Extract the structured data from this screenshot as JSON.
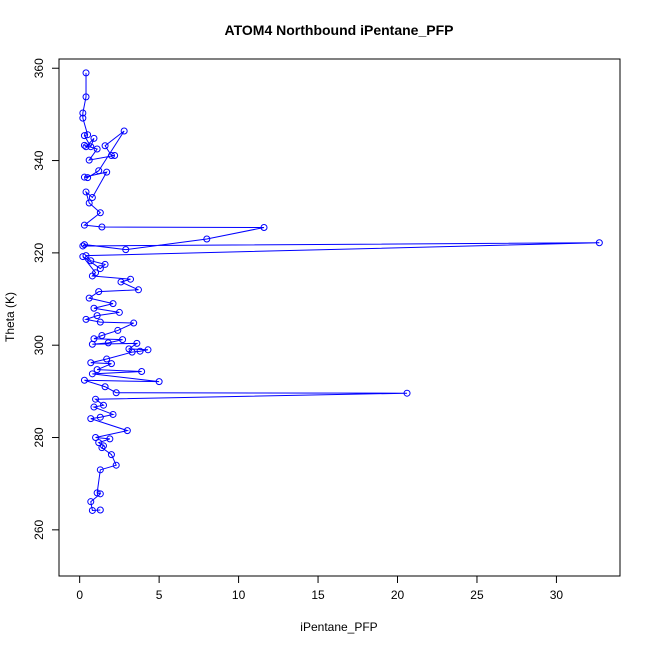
{
  "chart_data": {
    "type": "line",
    "title": "ATOM4 Northbound iPentane_PFP",
    "xlabel": "iPentane_PFP",
    "ylabel": "Theta (K)",
    "xlim": [
      -1.3,
      34.0
    ],
    "ylim": [
      250,
      362
    ],
    "xticks": [
      0,
      5,
      10,
      15,
      20,
      25,
      30
    ],
    "yticks": [
      260,
      280,
      300,
      320,
      340,
      360
    ],
    "grid": false,
    "legend": "none",
    "series_color": "#0000ff",
    "markers": "open-circle",
    "series": [
      {
        "points": [
          [
            0.4,
            359.0
          ],
          [
            0.4,
            353.8
          ],
          [
            0.2,
            350.3
          ],
          [
            0.2,
            349.2
          ],
          [
            0.5,
            345.6
          ],
          [
            0.3,
            345.4
          ],
          [
            0.7,
            343.0
          ],
          [
            0.9,
            344.8
          ],
          [
            0.4,
            343.0
          ],
          [
            0.3,
            343.3
          ],
          [
            1.1,
            342.5
          ],
          [
            0.6,
            340.1
          ],
          [
            2.2,
            341.1
          ],
          [
            2.0,
            341.1
          ],
          [
            1.6,
            343.2
          ],
          [
            2.8,
            346.4
          ],
          [
            1.2,
            337.8
          ],
          [
            0.5,
            336.3
          ],
          [
            0.3,
            336.4
          ],
          [
            1.7,
            337.5
          ],
          [
            0.8,
            332.0
          ],
          [
            0.4,
            333.2
          ],
          [
            0.6,
            330.8
          ],
          [
            1.3,
            328.7
          ],
          [
            0.3,
            326.0
          ],
          [
            1.4,
            325.6
          ],
          [
            11.6,
            325.5
          ],
          [
            8.0,
            323.0
          ],
          [
            2.9,
            320.7
          ],
          [
            0.3,
            321.8
          ],
          [
            0.2,
            321.5
          ],
          [
            32.7,
            322.2
          ],
          [
            0.4,
            319.4
          ],
          [
            0.7,
            318.3
          ],
          [
            1.6,
            317.5
          ],
          [
            1.3,
            316.6
          ],
          [
            0.2,
            319.2
          ],
          [
            1.0,
            315.7
          ],
          [
            0.8,
            315.0
          ],
          [
            3.2,
            314.3
          ],
          [
            2.6,
            313.7
          ],
          [
            3.7,
            312.0
          ],
          [
            1.2,
            311.6
          ],
          [
            0.6,
            310.2
          ],
          [
            2.1,
            309.0
          ],
          [
            0.9,
            308.0
          ],
          [
            2.5,
            307.1
          ],
          [
            1.1,
            306.4
          ],
          [
            0.4,
            305.6
          ],
          [
            1.3,
            305.0
          ],
          [
            3.4,
            304.8
          ],
          [
            2.4,
            303.2
          ],
          [
            1.4,
            302.1
          ],
          [
            0.9,
            301.4
          ],
          [
            2.7,
            301.2
          ],
          [
            1.8,
            300.5
          ],
          [
            0.8,
            300.2
          ],
          [
            3.6,
            300.4
          ],
          [
            3.1,
            299.2
          ],
          [
            4.3,
            299.0
          ],
          [
            3.8,
            298.7
          ],
          [
            3.3,
            298.5
          ],
          [
            1.7,
            297.0
          ],
          [
            0.7,
            296.2
          ],
          [
            2.0,
            296.0
          ],
          [
            1.1,
            294.7
          ],
          [
            3.9,
            294.3
          ],
          [
            0.8,
            293.8
          ],
          [
            5.0,
            292.1
          ],
          [
            0.3,
            292.4
          ],
          [
            1.6,
            291.0
          ],
          [
            2.3,
            289.7
          ],
          [
            20.6,
            289.6
          ],
          [
            1.0,
            288.3
          ],
          [
            1.5,
            287.0
          ],
          [
            0.9,
            286.6
          ],
          [
            2.1,
            285.0
          ],
          [
            1.3,
            284.4
          ],
          [
            0.7,
            284.1
          ],
          [
            3.0,
            281.5
          ],
          [
            1.0,
            280.0
          ],
          [
            1.9,
            279.7
          ],
          [
            1.2,
            278.9
          ],
          [
            1.5,
            278.2
          ],
          [
            1.4,
            277.8
          ],
          [
            2.0,
            276.3
          ],
          [
            2.3,
            274.0
          ],
          [
            1.3,
            273.0
          ],
          [
            1.1,
            268.0
          ],
          [
            1.3,
            267.8
          ],
          [
            0.7,
            266.1
          ],
          [
            0.8,
            264.2
          ],
          [
            1.3,
            264.3
          ]
        ]
      }
    ]
  }
}
